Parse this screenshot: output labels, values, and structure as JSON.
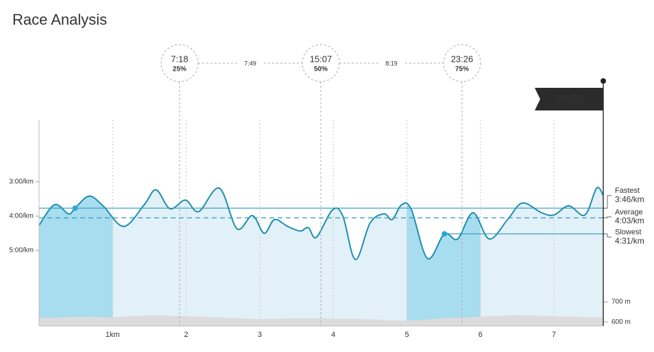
{
  "chart_data": {
    "type": "line",
    "title": "Race Analysis",
    "x": [
      0,
      0.21,
      0.4,
      0.49,
      0.68,
      0.87,
      1.15,
      1.43,
      1.59,
      1.78,
      1.99,
      2.17,
      2.45,
      2.69,
      2.9,
      3.06,
      3.2,
      3.38,
      3.55,
      3.66,
      3.77,
      3.99,
      4.13,
      4.3,
      4.5,
      4.69,
      4.8,
      4.93,
      5.06,
      5.28,
      5.51,
      5.69,
      5.9,
      6.12,
      6.37,
      6.57,
      6.83,
      7.0,
      7.2,
      7.42,
      7.58,
      7.67
    ],
    "series": [
      {
        "color": "#1c8db0",
        "values": [
          256,
          220,
          236,
          226,
          205,
          222,
          258,
          220,
          194,
          227,
          212,
          232,
          191,
          262,
          239,
          270,
          246,
          258,
          266,
          260,
          277,
          229,
          240,
          316,
          252,
          236,
          246,
          220,
          228,
          314,
          271,
          280,
          234,
          280,
          246,
          217,
          234,
          238,
          222,
          238,
          191,
          204
        ]
      }
    ],
    "xlim": [
      0,
      7.67
    ],
    "xticks": [
      {
        "value": 1,
        "label": "1km"
      },
      2,
      3,
      4,
      5,
      6,
      7
    ],
    "ylim": [
      432,
      72
    ],
    "yticks": [
      {
        "value": 180,
        "label": "3:00/km"
      },
      {
        "value": 240,
        "label": "4:00/km"
      },
      {
        "value": 300,
        "label": "5:00/km"
      }
    ],
    "fill_color": "#e2f0f7",
    "highlight_color": "#a8dcef",
    "highlight_ranges": [
      [
        0,
        1
      ],
      [
        5,
        6
      ]
    ],
    "elevation": {
      "color": "#dcdcdc",
      "x": [
        0,
        0.5,
        1,
        1.5,
        2,
        2.5,
        3,
        3.5,
        4,
        4.5,
        5,
        5.5,
        6,
        6.5,
        7,
        7.67
      ],
      "values": [
        620,
        625,
        624,
        632,
        628,
        622,
        614,
        618,
        616,
        613,
        606,
        618,
        626,
        633,
        628,
        622
      ],
      "lim": [
        580,
        700
      ],
      "ticks": [
        {
          "value": 700,
          "label": "700 m"
        },
        {
          "value": 600,
          "label": "600 m"
        }
      ]
    },
    "markers": [
      {
        "label": "Fastest",
        "value": 226,
        "value_label": "3:46/km",
        "x": 0.49
      },
      {
        "label": "Average",
        "value": 243,
        "value_label": "4:03/km"
      },
      {
        "label": "Slowest",
        "value": 271,
        "value_label": "4:31/km",
        "x": 5.51
      }
    ],
    "checkpoints": [
      {
        "time": "7:18",
        "percent": {
          "value": 25,
          "label": "25%"
        },
        "x": 1.91
      },
      {
        "time": "15:07",
        "percent": {
          "value": 50,
          "label": "50%"
        },
        "x": 3.83
      },
      {
        "time": "23:26",
        "percent": {
          "value": 75,
          "label": "75%"
        },
        "x": 5.75
      }
    ],
    "splits": [
      "7:49",
      "8:19"
    ],
    "finish": {
      "time": "30:58",
      "x": 7.67
    }
  }
}
